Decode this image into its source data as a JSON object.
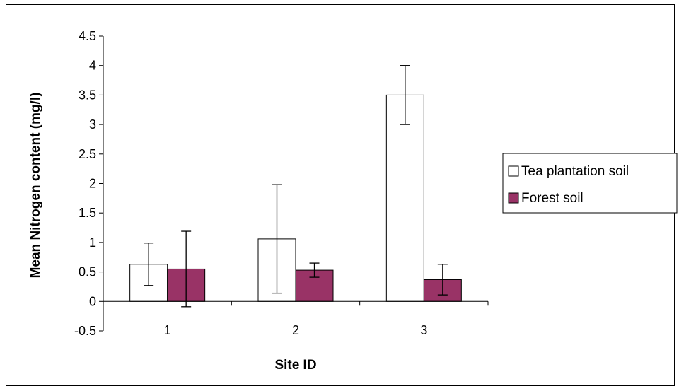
{
  "chart_data": {
    "type": "bar",
    "categories": [
      "1",
      "2",
      "3"
    ],
    "series": [
      {
        "name": "Tea plantation soil",
        "color": "#ffffff",
        "values": [
          0.63,
          1.06,
          3.5
        ],
        "error": [
          0.36,
          0.92,
          0.5
        ]
      },
      {
        "name": "Forest soil",
        "color": "#993366",
        "values": [
          0.55,
          0.53,
          0.37
        ],
        "error": [
          0.64,
          0.12,
          0.26
        ]
      }
    ],
    "xlabel": "Site ID",
    "ylabel": "Mean Nitrogen content (mg/l)",
    "ylim": [
      -0.5,
      4.5
    ],
    "yticks": [
      -0.5,
      0,
      0.5,
      1,
      1.5,
      2,
      2.5,
      3,
      3.5,
      4,
      4.5
    ],
    "ytick_labels": [
      "-0.5",
      "0",
      "0.5",
      "1",
      "1.5",
      "2",
      "2.5",
      "3",
      "3.5",
      "4",
      "4.5"
    ],
    "grid": false,
    "legend_position": "right"
  }
}
